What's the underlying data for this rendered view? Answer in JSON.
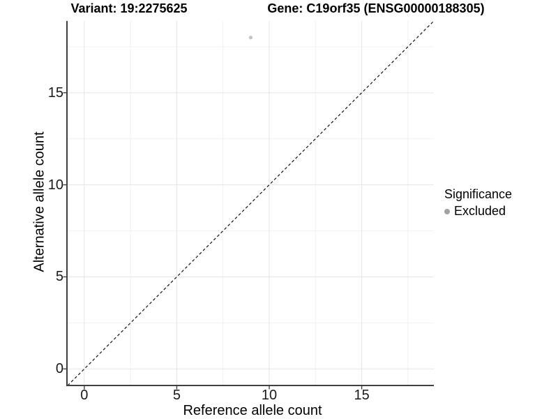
{
  "chart_data": {
    "type": "scatter",
    "title_left": "Variant: 19:2275625",
    "title_right": "Gene: C19orf35 (ENSG00000188305)",
    "xlabel": "Reference allele count",
    "ylabel": "Alternative allele count",
    "xlim": [
      -0.9,
      18.9
    ],
    "ylim": [
      -0.9,
      18.9
    ],
    "x_ticks": [
      0,
      5,
      10,
      15
    ],
    "y_ticks": [
      0,
      5,
      10,
      15
    ],
    "x_minor_ticks": [
      2.5,
      7.5,
      12.5,
      17.5
    ],
    "y_minor_ticks": [
      2.5,
      7.5,
      12.5,
      17.5
    ],
    "grid": "major+minor",
    "series": [
      {
        "name": "Excluded",
        "color": "#c4c4c4",
        "point_radius": 2.6,
        "points": [
          {
            "x": 9,
            "y": 18
          }
        ]
      }
    ],
    "reference_line": {
      "kind": "identity y=x",
      "style": "dashed",
      "color": "#111111"
    },
    "legend": {
      "title": "Significance",
      "position": "right",
      "items": [
        {
          "label": "Excluded",
          "color": "#a2a2a2"
        }
      ]
    }
  },
  "colors": {
    "background": "#ffffff",
    "axis_line": "#404040",
    "tick_label_color": "#1a1a1a",
    "grid_major": "#e5e5e5",
    "grid_minor": "#f1f1f1"
  }
}
